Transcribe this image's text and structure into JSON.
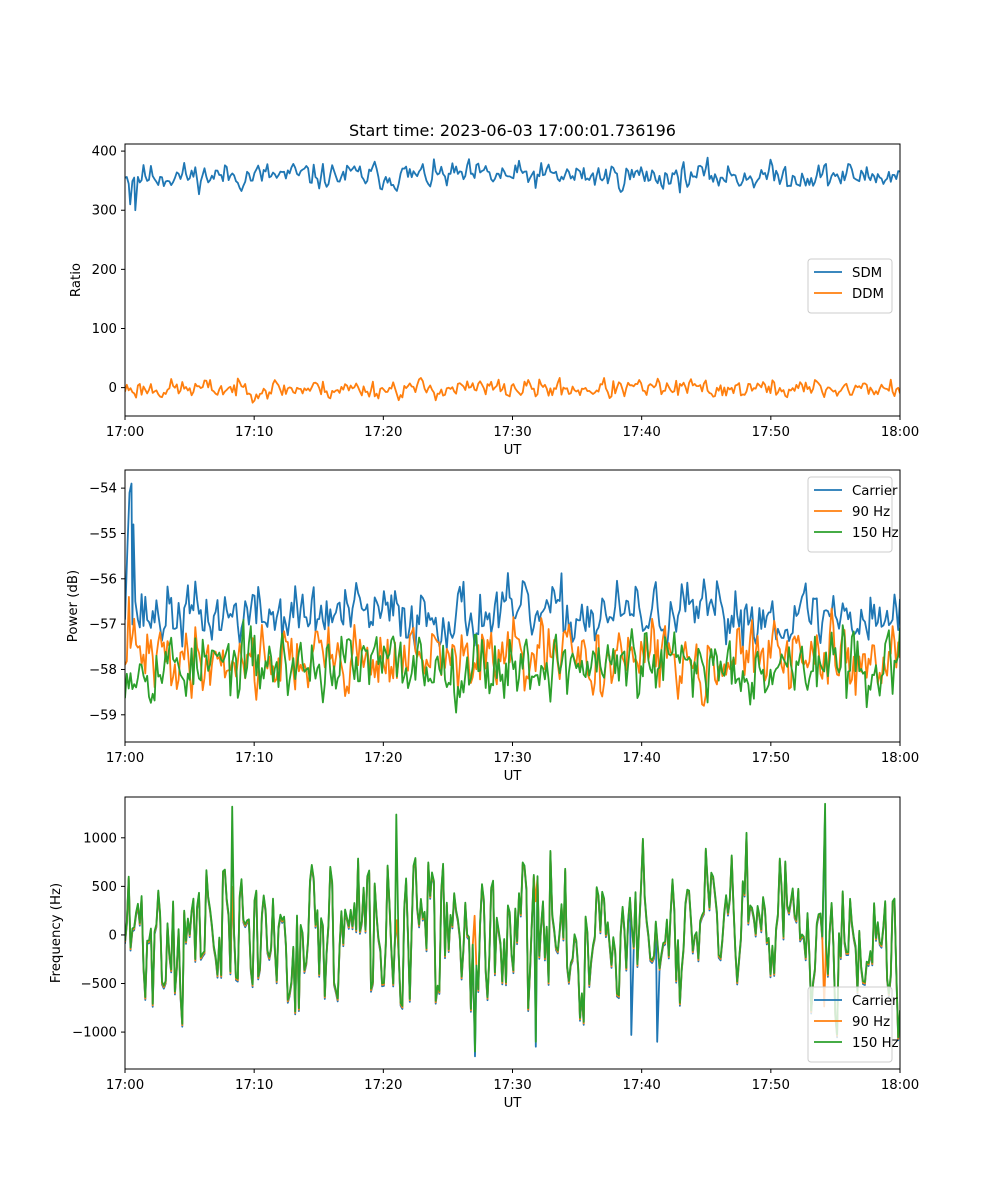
{
  "chart_data": [
    {
      "type": "line",
      "title": "Start time: 2023-06-03 17:00:01.736196",
      "xlabel": "UT",
      "ylabel": "Ratio",
      "x_ticks": [
        "17:00",
        "17:10",
        "17:20",
        "17:30",
        "17:40",
        "17:50",
        "18:00"
      ],
      "y_ticks": [
        0,
        100,
        200,
        300,
        400
      ],
      "xlim": [
        0,
        60
      ],
      "ylim": [
        -48,
        412
      ],
      "legend": "center-right",
      "grid": false,
      "series": [
        {
          "name": "SDM",
          "color": "#1f77b4",
          "base": 358,
          "amp": 15,
          "seed": 11,
          "x": [
            0,
            0.4,
            0.8
          ],
          "y": [
            355,
            310,
            300
          ]
        },
        {
          "name": "DDM",
          "color": "#ff7f0e",
          "base": -2,
          "amp": 11,
          "seed": 23,
          "x": [],
          "y": []
        }
      ]
    },
    {
      "type": "line",
      "title": "",
      "xlabel": "UT",
      "ylabel": "Power (dB)",
      "x_ticks": [
        "17:00",
        "17:10",
        "17:20",
        "17:30",
        "17:40",
        "17:50",
        "18:00"
      ],
      "y_ticks": [
        -54,
        -55,
        -56,
        -57,
        -58,
        -59
      ],
      "xlim": [
        0,
        60
      ],
      "ylim": [
        -59.6,
        -53.6
      ],
      "legend": "top-right",
      "grid": false,
      "series": [
        {
          "name": "Carrier",
          "color": "#1f77b4",
          "base": -56.8,
          "amp": 0.45,
          "seed": 37,
          "x": [
            0,
            0.2,
            0.35,
            0.5,
            0.65,
            0.8
          ],
          "y": [
            -56.9,
            -55.2,
            -54.1,
            -53.9,
            -54.8,
            -56.5
          ]
        },
        {
          "name": "90 Hz",
          "color": "#ff7f0e",
          "base": -57.75,
          "amp": 0.5,
          "seed": 41,
          "x": [
            0,
            0.3,
            0.6
          ],
          "y": [
            -57.9,
            -56.4,
            -57.2
          ]
        },
        {
          "name": "150 Hz",
          "color": "#2ca02c",
          "base": -57.9,
          "amp": 0.5,
          "seed": 53,
          "x": [],
          "y": []
        }
      ]
    },
    {
      "type": "line",
      "title": "",
      "xlabel": "UT",
      "ylabel": "Frequency (Hz)",
      "x_ticks": [
        "17:00",
        "17:10",
        "17:20",
        "17:30",
        "17:40",
        "17:50",
        "18:00"
      ],
      "y_ticks": [
        1000,
        500,
        0,
        -500,
        -1000
      ],
      "xlim": [
        0,
        60
      ],
      "ylim": [
        -1380,
        1420
      ],
      "legend": "bottom-right",
      "grid": false,
      "series": [
        {
          "name": "Carrier",
          "color": "#1f77b4",
          "base": -30,
          "amp": 520,
          "seed": 71,
          "x": [
            27.1,
            31.8,
            39.2,
            41.2,
            54.2
          ],
          "y": [
            -1250,
            -1150,
            -1030,
            -1100,
            1260
          ]
        },
        {
          "name": "90 Hz",
          "color": "#ff7f0e",
          "base": -15,
          "amp": 520,
          "seed": 71,
          "x": [],
          "y": []
        },
        {
          "name": "150 Hz",
          "color": "#2ca02c",
          "base": 0,
          "amp": 520,
          "seed": 71,
          "x": [
            8.3,
            21.0,
            27.1,
            31.8,
            54.2
          ],
          "y": [
            1320,
            1240,
            -1200,
            -1100,
            1350
          ]
        }
      ]
    }
  ]
}
